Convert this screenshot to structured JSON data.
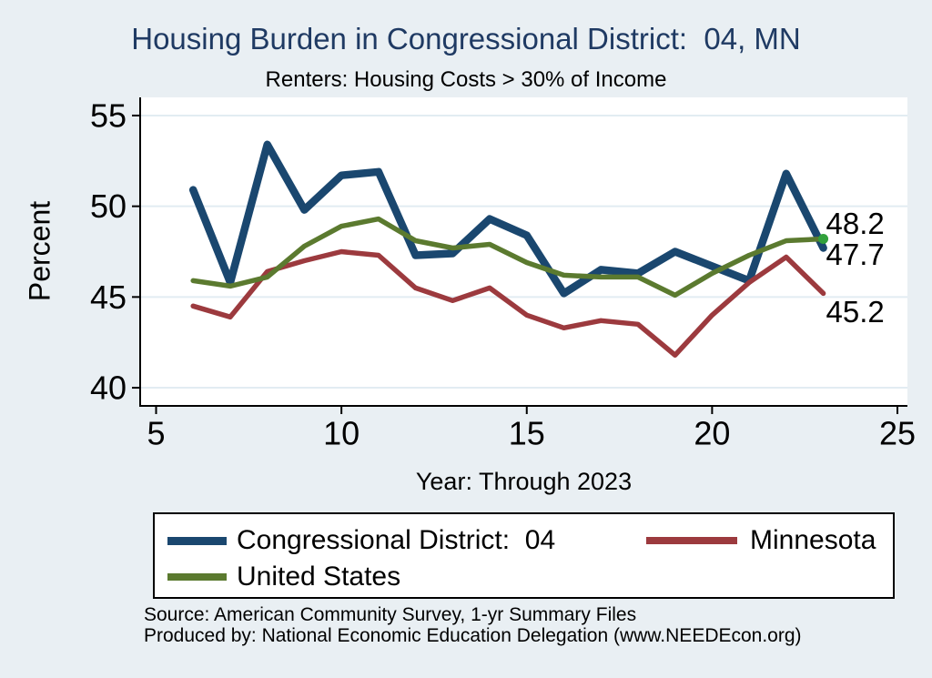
{
  "header": {
    "title": "Housing Burden in Congressional District:  04, MN",
    "subtitle": "Renters: Housing Costs > 30% of Income",
    "title_color": "#1f3a63"
  },
  "chart_data": {
    "type": "line",
    "title": "Housing Burden in Congressional District:  04, MN",
    "subtitle": "Renters: Housing Costs > 30% of Income",
    "xlabel": "Year: Through 2023",
    "ylabel": "Percent",
    "x": [
      6,
      7,
      8,
      9,
      10,
      11,
      12,
      13,
      14,
      15,
      16,
      17,
      18,
      19,
      20,
      21,
      22,
      23
    ],
    "xticks": [
      5,
      10,
      15,
      20,
      25
    ],
    "yticks": [
      40,
      45,
      50,
      55
    ],
    "xlim": [
      4.57,
      25.27
    ],
    "ylim": [
      39.0,
      56.0
    ],
    "grid": "horizontal",
    "legend_position": "bottom",
    "plot_bg": "#ffffff",
    "grid_color": "#e2ecf2",
    "axis_color": "#000000",
    "series": [
      {
        "name": "Congressional District:  04",
        "color": "#1a476f",
        "line_width": 8.5,
        "end_label": "47.7",
        "values": [
          50.9,
          45.8,
          53.4,
          49.8,
          51.7,
          51.9,
          47.3,
          47.4,
          49.3,
          48.4,
          45.2,
          46.5,
          46.3,
          47.5,
          46.7,
          45.9,
          51.8,
          47.7
        ]
      },
      {
        "name": "Minnesota",
        "color": "#9c3a3e",
        "line_width": 5.5,
        "end_label": "45.2",
        "values": [
          44.5,
          43.9,
          46.4,
          47.0,
          47.5,
          47.3,
          45.5,
          44.8,
          45.5,
          44.0,
          43.3,
          43.7,
          43.5,
          41.8,
          44.0,
          45.8,
          47.2,
          45.2
        ]
      },
      {
        "name": "United States",
        "color": "#5b7a2f",
        "line_width": 5.5,
        "end_label": "48.2",
        "end_dot_color": "#32a13c",
        "values": [
          45.9,
          45.6,
          46.1,
          47.8,
          48.9,
          49.3,
          48.1,
          47.7,
          47.9,
          46.9,
          46.2,
          46.1,
          46.1,
          45.1,
          46.3,
          47.3,
          48.1,
          48.2
        ]
      }
    ]
  },
  "legend": {
    "items": [
      {
        "label": "Congressional District:  04",
        "color": "#1a476f"
      },
      {
        "label": "Minnesota",
        "color": "#9c3a3e"
      },
      {
        "label": "United States",
        "color": "#5b7a2f"
      }
    ]
  },
  "footer": {
    "line1": "Source: American Community Survey, 1-yr Summary Files",
    "line2": "Produced by: National Economic Education Delegation (www.NEEDEcon.org)"
  }
}
